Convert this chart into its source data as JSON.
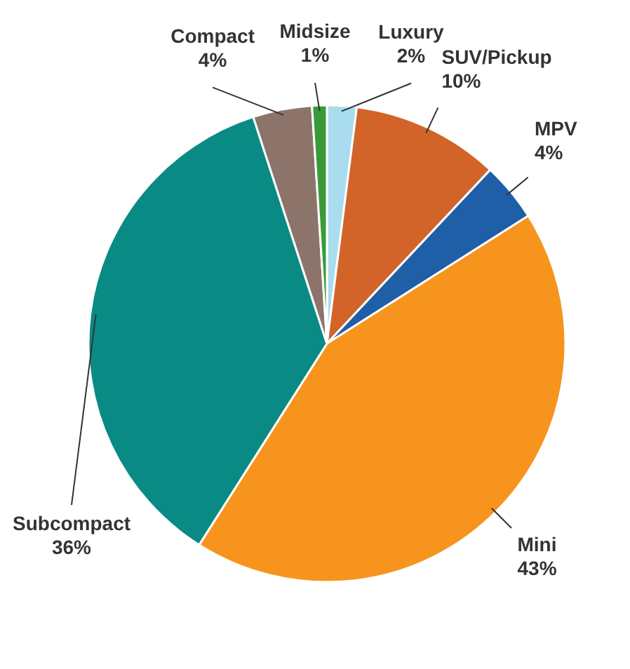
{
  "chart_data": {
    "type": "pie",
    "categories": [
      "Luxury",
      "SUV/Pickup",
      "MPV",
      "Mini",
      "Subcompact",
      "Compact",
      "Midsize"
    ],
    "values": [
      2,
      10,
      4,
      43,
      36,
      4,
      1
    ],
    "colors": [
      "#a9dcef",
      "#d2642a",
      "#1f5fa8",
      "#f7941d",
      "#0a8a85",
      "#8c746a",
      "#3a9a3a"
    ],
    "value_labels": [
      "2%",
      "10%",
      "4%",
      "43%",
      "36%",
      "4%",
      "1%"
    ]
  }
}
